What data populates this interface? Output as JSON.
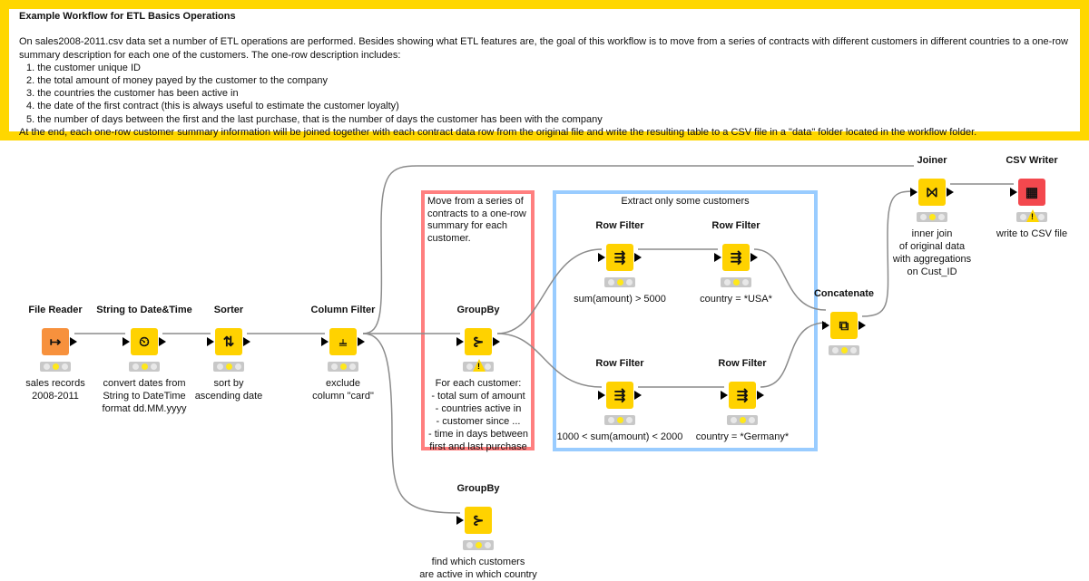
{
  "annotation": {
    "title": "Example Workflow for ETL Basics Operations",
    "intro": "On  sales2008-2011.csv data set a number of ETL operations are performed. Besides showing what ETL features are, the goal of this workflow is to move from a series of contracts with different customers in different countries to a one-row summary description for each one of the customers. The one-row description includes:",
    "items": [
      "1. the customer unique ID",
      "2. the total amount of money payed by the customer to the company",
      "3. the countries the customer has been active in",
      "4. the date of the first contract (this is always useful to estimate the customer loyalty)",
      "5. the number of days between the first and the last purchase, that is the number of days the customer has been with the company"
    ],
    "outro": "At the end, each one-row customer summary information will be joined together with each contract data row from the original file and write the resulting table to a CSV file in a \"data\" folder located in the workflow folder.",
    "border_color": "#FFD700"
  },
  "boxes": {
    "groupby_box": {
      "text": "Move from a series of contracts to a one-row summary for each customer.",
      "color": "#FF7F7F"
    },
    "filter_box": {
      "text": "Extract only some customers",
      "color": "#99CCFF"
    }
  },
  "nodes": [
    {
      "title": "File Reader",
      "label": "sales records\n2008-2011",
      "icon": "file-reader-icon",
      "color": "#F7913D",
      "status": "configured"
    },
    {
      "title": "String to Date&Time",
      "label": "convert dates from\nString to DateTime\nformat dd.MM.yyyy",
      "icon": "string-to-date-icon",
      "color": "#FFD200",
      "status": "configured"
    },
    {
      "title": "Sorter",
      "label": "sort by\nascending date",
      "icon": "sort-icon",
      "color": "#FFD200",
      "status": "configured"
    },
    {
      "title": "Column Filter",
      "label": "exclude\ncolumn \"card\"",
      "icon": "column-filter-icon",
      "color": "#FFD200",
      "status": "configured"
    },
    {
      "title": "GroupBy",
      "label": "For each customer:\n- total sum of amount\n- countries active in\n- customer since ...\n- time in days between\nfirst and last purchase",
      "icon": "groupby-icon",
      "color": "#FFD200",
      "status": "warning"
    },
    {
      "title": "Row Filter",
      "label": "sum(amount) > 5000",
      "icon": "row-filter-icon",
      "color": "#FFD200",
      "status": "configured"
    },
    {
      "title": "Row Filter",
      "label": "country = *USA*",
      "icon": "row-filter-icon",
      "color": "#FFD200",
      "status": "configured"
    },
    {
      "title": "Row Filter",
      "label": "1000 < sum(amount) < 2000",
      "icon": "row-filter-icon",
      "color": "#FFD200",
      "status": "configured"
    },
    {
      "title": "Row Filter",
      "label": "country = *Germany*",
      "icon": "row-filter-icon",
      "color": "#FFD200",
      "status": "configured"
    },
    {
      "title": "Concatenate",
      "label": "",
      "icon": "concatenate-icon",
      "color": "#FFD200",
      "status": "configured"
    },
    {
      "title": "Joiner",
      "label": "inner join\nof original data\nwith aggregations\non Cust_ID",
      "icon": "joiner-icon",
      "color": "#FFD200",
      "status": "configured"
    },
    {
      "title": "CSV Writer",
      "label": "write to CSV file",
      "icon": "csv-writer-icon",
      "color": "#F3484E",
      "status": "warning"
    },
    {
      "title": "GroupBy",
      "label": "find which customers\nare active in which country",
      "icon": "groupby-icon",
      "color": "#FFD200",
      "status": "configured"
    }
  ]
}
